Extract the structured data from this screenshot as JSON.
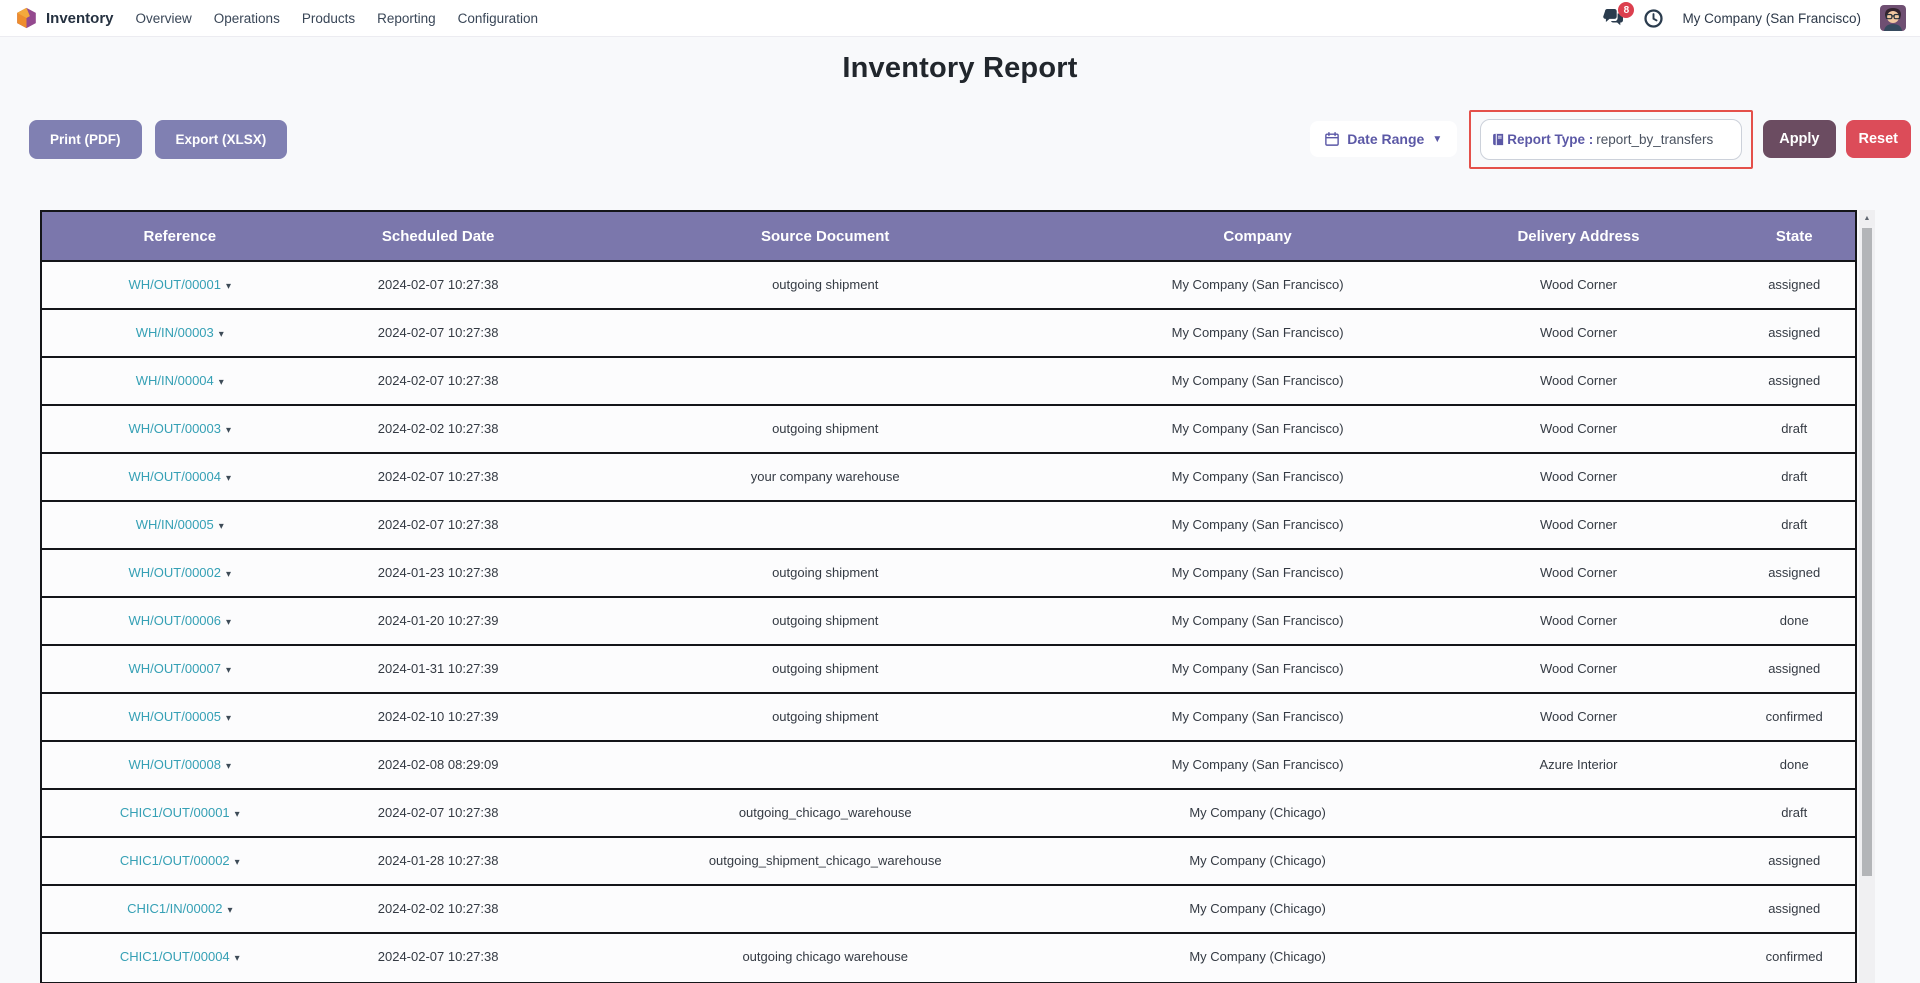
{
  "colors": {
    "accent_purple": "#5b58a6",
    "header_bg": "#7b77ac",
    "btn_muted_bg": "#8080b2",
    "apply_bg": "#6b4c61",
    "reset_bg": "#dc4c59",
    "highlight_red": "#e4504a",
    "link_teal": "#35a0b5",
    "badge_red": "#dc3f4e"
  },
  "navbar": {
    "app_name": "Inventory",
    "menu_items": [
      "Overview",
      "Operations",
      "Products",
      "Reporting",
      "Configuration"
    ],
    "messages_badge": "8",
    "company": "My Company (San Francisco)"
  },
  "page": {
    "title": "Inventory Report"
  },
  "toolbar": {
    "print_label": "Print (PDF)",
    "export_label": "Export (XLSX)",
    "date_range_label": "Date Range",
    "report_type_label": "Report Type :",
    "report_type_value": "report_by_transfers",
    "apply_label": "Apply",
    "reset_label": "Reset"
  },
  "table": {
    "columns": [
      "Reference",
      "Scheduled Date",
      "Source Document",
      "Company",
      "Delivery Address",
      "State"
    ],
    "rows": [
      {
        "reference": "WH/OUT/00001",
        "scheduled_date": "2024-02-07 10:27:38",
        "source_document": "outgoing shipment",
        "company": "My Company (San Francisco)",
        "delivery_address": "Wood Corner",
        "state": "assigned"
      },
      {
        "reference": "WH/IN/00003",
        "scheduled_date": "2024-02-07 10:27:38",
        "source_document": "",
        "company": "My Company (San Francisco)",
        "delivery_address": "Wood Corner",
        "state": "assigned"
      },
      {
        "reference": "WH/IN/00004",
        "scheduled_date": "2024-02-07 10:27:38",
        "source_document": "",
        "company": "My Company (San Francisco)",
        "delivery_address": "Wood Corner",
        "state": "assigned"
      },
      {
        "reference": "WH/OUT/00003",
        "scheduled_date": "2024-02-02 10:27:38",
        "source_document": "outgoing shipment",
        "company": "My Company (San Francisco)",
        "delivery_address": "Wood Corner",
        "state": "draft"
      },
      {
        "reference": "WH/OUT/00004",
        "scheduled_date": "2024-02-07 10:27:38",
        "source_document": "your company warehouse",
        "company": "My Company (San Francisco)",
        "delivery_address": "Wood Corner",
        "state": "draft"
      },
      {
        "reference": "WH/IN/00005",
        "scheduled_date": "2024-02-07 10:27:38",
        "source_document": "",
        "company": "My Company (San Francisco)",
        "delivery_address": "Wood Corner",
        "state": "draft"
      },
      {
        "reference": "WH/OUT/00002",
        "scheduled_date": "2024-01-23 10:27:38",
        "source_document": "outgoing shipment",
        "company": "My Company (San Francisco)",
        "delivery_address": "Wood Corner",
        "state": "assigned"
      },
      {
        "reference": "WH/OUT/00006",
        "scheduled_date": "2024-01-20 10:27:39",
        "source_document": "outgoing shipment",
        "company": "My Company (San Francisco)",
        "delivery_address": "Wood Corner",
        "state": "done"
      },
      {
        "reference": "WH/OUT/00007",
        "scheduled_date": "2024-01-31 10:27:39",
        "source_document": "outgoing shipment",
        "company": "My Company (San Francisco)",
        "delivery_address": "Wood Corner",
        "state": "assigned"
      },
      {
        "reference": "WH/OUT/00005",
        "scheduled_date": "2024-02-10 10:27:39",
        "source_document": "outgoing shipment",
        "company": "My Company (San Francisco)",
        "delivery_address": "Wood Corner",
        "state": "confirmed"
      },
      {
        "reference": "WH/OUT/00008",
        "scheduled_date": "2024-02-08 08:29:09",
        "source_document": "",
        "company": "My Company (San Francisco)",
        "delivery_address": "Azure Interior",
        "state": "done"
      },
      {
        "reference": "CHIC1/OUT/00001",
        "scheduled_date": "2024-02-07 10:27:38",
        "source_document": "outgoing_chicago_warehouse",
        "company": "My Company (Chicago)",
        "delivery_address": "",
        "state": "draft"
      },
      {
        "reference": "CHIC1/OUT/00002",
        "scheduled_date": "2024-01-28 10:27:38",
        "source_document": "outgoing_shipment_chicago_warehouse",
        "company": "My Company (Chicago)",
        "delivery_address": "",
        "state": "assigned"
      },
      {
        "reference": "CHIC1/IN/00002",
        "scheduled_date": "2024-02-02 10:27:38",
        "source_document": "",
        "company": "My Company (Chicago)",
        "delivery_address": "",
        "state": "assigned"
      },
      {
        "reference": "CHIC1/OUT/00004",
        "scheduled_date": "2024-02-07 10:27:38",
        "source_document": "outgoing chicago warehouse",
        "company": "My Company (Chicago)",
        "delivery_address": "",
        "state": "confirmed"
      }
    ]
  }
}
